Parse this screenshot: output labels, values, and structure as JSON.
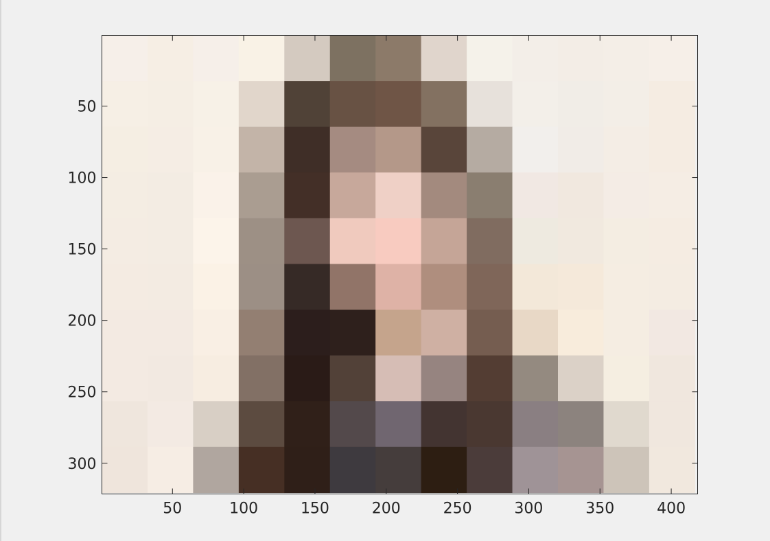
{
  "chart_data": {
    "type": "heatmap",
    "title": "",
    "xlabel": "",
    "ylabel": "",
    "xlim": [
      1,
      418
    ],
    "ylim": [
      1,
      321
    ],
    "y_reversed": true,
    "grid": false,
    "x_ticks": [
      50,
      100,
      150,
      200,
      250,
      300,
      350,
      400
    ],
    "y_ticks": [
      50,
      100,
      150,
      200,
      250,
      300
    ],
    "x_tick_labels": [
      "50",
      "100",
      "150",
      "200",
      "250",
      "300",
      "350",
      "400"
    ],
    "y_tick_labels": [
      "50",
      "100",
      "150",
      "200",
      "250",
      "300"
    ],
    "block_size": 32,
    "rows": 10,
    "cols": 13,
    "cells": [
      [
        "#f6efe9",
        "#f6eee4",
        "#f6efe9",
        "#f9f2e6",
        "#d4cac0",
        "#7d7161",
        "#8c7a69",
        "#e0d5cc",
        "#f5f2ea",
        "#f3eee8",
        "#f3ede6",
        "#f4eee7",
        "#f6efe8"
      ],
      [
        "#f6efe5",
        "#f5eee4",
        "#f7f1e7",
        "#e1d6cb",
        "#504237",
        "#685244",
        "#6f5546",
        "#837161",
        "#e7e1db",
        "#f3efe9",
        "#f1ede7",
        "#f3eee7",
        "#f5ece2"
      ],
      [
        "#f5eee3",
        "#f5ede4",
        "#f8f1e7",
        "#c3b4a8",
        "#3f2e27",
        "#a58b81",
        "#b49889",
        "#59453a",
        "#b5aba2",
        "#f2efec",
        "#f1ece7",
        "#f4ede5",
        "#f5ece2"
      ],
      [
        "#f4ede3",
        "#f3ece3",
        "#faf2e9",
        "#aa9d91",
        "#432f27",
        "#c7a89b",
        "#efd0c6",
        "#a38a7e",
        "#8a7e70",
        "#f1e8e3",
        "#f1e8df",
        "#f4ece5",
        "#f5ede4"
      ],
      [
        "#f4ece3",
        "#f3ece3",
        "#fcf4ea",
        "#9d9085",
        "#6d5750",
        "#f0cabe",
        "#f8cbc0",
        "#c5a597",
        "#806c60",
        "#eeeae0",
        "#f1e9df",
        "#f4ede2",
        "#f5ece2"
      ],
      [
        "#f4ebe2",
        "#f3ebe2",
        "#fbf2e6",
        "#9c8f85",
        "#362a26",
        "#917468",
        "#deb2a6",
        "#af8e7e",
        "#7f6659",
        "#f3e8d9",
        "#f5e9da",
        "#f5ede2",
        "#f4ece2"
      ],
      [
        "#f3eae2",
        "#f3eae2",
        "#f9efe4",
        "#937f72",
        "#2c1e1c",
        "#2e201c",
        "#c5a48c",
        "#cfb0a3",
        "#755d50",
        "#e8d8c6",
        "#f8ecdc",
        "#f5ede2",
        "#f2e8e2"
      ],
      [
        "#f3eae2",
        "#f2e9e1",
        "#f7ede1",
        "#827065",
        "#2a1b17",
        "#524138",
        "#d6bdb5",
        "#968480",
        "#533d33",
        "#948a80",
        "#dbd1c7",
        "#f5eee1",
        "#f0e7de"
      ],
      [
        "#efe6dd",
        "#f3eae3",
        "#d8cfc5",
        "#5c4b40",
        "#302019",
        "#53494b",
        "#706670",
        "#433431",
        "#4a3831",
        "#8a7f82",
        "#8c837e",
        "#e0d9ce",
        "#f0e7de"
      ],
      [
        "#efe5dc",
        "#f6ede4",
        "#b0a69f",
        "#462f24",
        "#2f1f18",
        "#3e3a3f",
        "#453d3c",
        "#2d1e12",
        "#4b3c3a",
        "#9f9397",
        "#a69492",
        "#cdc4b9",
        "#f1e8de"
      ]
    ]
  }
}
